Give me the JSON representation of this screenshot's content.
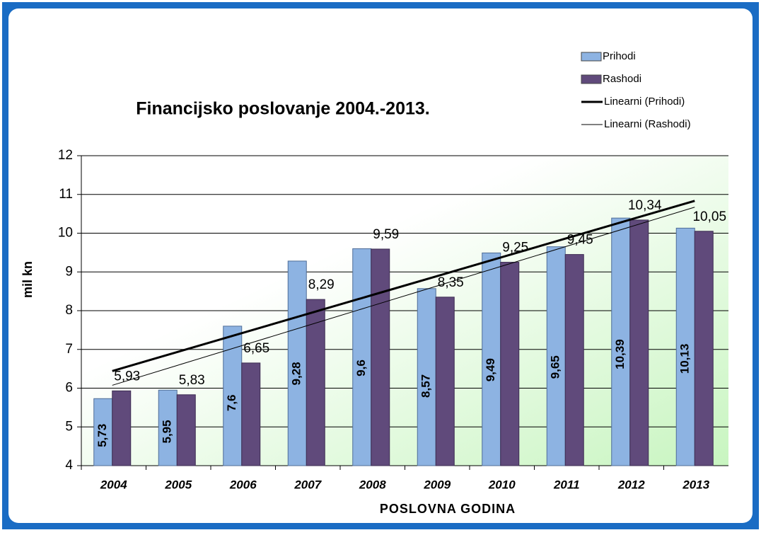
{
  "chart_data": {
    "type": "bar",
    "title": "Financijsko poslovanje 2004.-2013.",
    "x_label": "POSLOVNA GODINA",
    "y_label": "mil kn",
    "categories": [
      "2004",
      "2005",
      "2006",
      "2007",
      "2008",
      "2009",
      "2010",
      "2011",
      "2012",
      "2013"
    ],
    "series": [
      {
        "name": "Prihodi",
        "color": "#8db3e2",
        "values": [
          5.73,
          5.95,
          7.6,
          9.28,
          9.6,
          8.57,
          9.49,
          9.65,
          10.39,
          10.13
        ],
        "value_labels": [
          "5,73",
          "5,95",
          "7,6",
          "9,28",
          "9,6",
          "8,57",
          "9,49",
          "9,65",
          "10,39",
          "10,13"
        ]
      },
      {
        "name": "Rashodi",
        "color": "#604a7b",
        "values": [
          5.93,
          5.83,
          6.65,
          8.29,
          9.59,
          8.35,
          9.25,
          9.45,
          10.34,
          10.05
        ],
        "value_labels": [
          "5,93",
          "5,83",
          "6,65",
          "8,29",
          "9,59",
          "8,35",
          "9,25",
          "9,45",
          "10,34",
          "10,05"
        ]
      }
    ],
    "trendlines": [
      {
        "name": "Linearni (Prihodi)",
        "color": "#000000",
        "series": 0,
        "width": 3
      },
      {
        "name": "Linearni (Rashodi)",
        "color": "#000000",
        "series": 1,
        "width": 1
      }
    ],
    "ylim": [
      4,
      12
    ],
    "yticks": [
      4,
      5,
      6,
      7,
      8,
      9,
      10,
      11,
      12
    ],
    "grid": true,
    "legend": "top-right"
  }
}
